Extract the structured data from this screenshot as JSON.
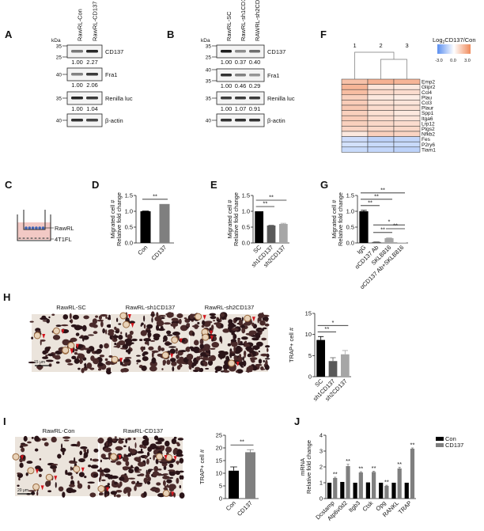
{
  "panels": {
    "A": "A",
    "B": "B",
    "C": "C",
    "D": "D",
    "E": "E",
    "F": "F",
    "G": "G",
    "H": "H",
    "I": "I",
    "J": "J"
  },
  "blot_A": {
    "kda": "kDa",
    "lanes": [
      "RawRL-Con",
      "RawRL-CD137"
    ],
    "rows": [
      {
        "label": "CD137",
        "markers": [
          "35",
          "25"
        ],
        "values": [
          "1.00",
          "2.27"
        ],
        "intensity": [
          0.55,
          0.95
        ]
      },
      {
        "label": "Fra1",
        "markers": [
          "40"
        ],
        "values": [
          "1.00",
          "2.06"
        ],
        "intensity": [
          0.5,
          0.85
        ]
      },
      {
        "label": "Renilla luc",
        "markers": [
          "35"
        ],
        "values": [
          "1.00",
          "1.04"
        ],
        "intensity": [
          0.95,
          0.85
        ]
      },
      {
        "label": "β-actin",
        "markers": [
          "40"
        ],
        "values": [],
        "intensity": [
          0.9,
          0.8
        ]
      }
    ]
  },
  "blot_B": {
    "kda": "kDa",
    "lanes": [
      "RawRL-SC",
      "RawRL-sh1CD137",
      "RAWRL-sh2CD137"
    ],
    "rows": [
      {
        "label": "CD137",
        "markers": [
          "35",
          "25"
        ],
        "values": [
          "1.00",
          "0.37",
          "0.40"
        ],
        "intensity": [
          1.0,
          0.45,
          0.6
        ]
      },
      {
        "label": "Fra1",
        "markers": [
          "40",
          "35"
        ],
        "values": [
          "1.00",
          "0.46",
          "0.29"
        ],
        "intensity": [
          0.9,
          0.5,
          0.4
        ]
      },
      {
        "label": "Renilla luc",
        "markers": [
          "35"
        ],
        "values": [
          "1.00",
          "1.07",
          "0.91"
        ],
        "intensity": [
          0.85,
          0.85,
          0.85
        ]
      },
      {
        "label": "β-actin",
        "markers": [
          "40"
        ],
        "values": [],
        "intensity": [
          0.9,
          0.9,
          0.9
        ]
      }
    ]
  },
  "heatmap": {
    "legend_title": "Log2CD137/Con",
    "legend_title_main": "Log",
    "legend_title_sub": "2",
    "legend_title_rest": "CD137/Con",
    "legend_ticks": [
      "-3.0",
      "0.0",
      "3.0"
    ],
    "range": [
      -3,
      3
    ],
    "colors": {
      "low": "#5b8ff0",
      "mid": "#ffffff",
      "high": "#f08a5b"
    },
    "columns": [
      "1",
      "2",
      "3"
    ],
    "genes": [
      "Emp2",
      "Glipr2",
      "Ccl4",
      "Plau",
      "Ccl3",
      "Plaur",
      "Spp1",
      "Itga6",
      "Lrp12",
      "Ptgs2",
      "Nfkb2",
      "Fes",
      "P2ry6",
      "Tiam1"
    ],
    "values": [
      [
        1.6,
        2.0,
        1.9
      ],
      [
        1.9,
        0.7,
        0.6
      ],
      [
        1.7,
        1.0,
        0.9
      ],
      [
        1.2,
        0.6,
        0.5
      ],
      [
        1.3,
        0.8,
        0.7
      ],
      [
        1.4,
        0.9,
        0.8
      ],
      [
        1.2,
        0.8,
        0.6
      ],
      [
        1.3,
        0.9,
        0.7
      ],
      [
        1.2,
        1.0,
        0.9
      ],
      [
        1.1,
        1.0,
        1.0
      ],
      [
        0.6,
        1.2,
        1.1
      ],
      [
        -0.9,
        -1.2,
        -1.1
      ],
      [
        -0.8,
        -1.0,
        -1.0
      ],
      [
        -1.0,
        -1.1,
        -1.2
      ]
    ]
  },
  "schematic": {
    "top_label": "RawRL",
    "bottom_label": "4T1FL"
  },
  "chart_data": [
    {
      "id": "D",
      "type": "bar",
      "ylabel_lines": [
        "Migrated cell #",
        "Relative fold change"
      ],
      "categories": [
        "Con",
        "CD137"
      ],
      "values": [
        1.0,
        1.23
      ],
      "errors": [
        0.01,
        0.0
      ],
      "colors": [
        "#000000",
        "#7f7f7f"
      ],
      "ylim": [
        0,
        1.5
      ],
      "yticks": [
        "0.0",
        "0.5",
        "1.0",
        "1.5"
      ],
      "significance": [
        {
          "pair": [
            0,
            1
          ],
          "label": "**"
        }
      ]
    },
    {
      "id": "E",
      "type": "bar",
      "ylabel_lines": [
        "Migrated cell #",
        "Relative fold change"
      ],
      "categories": [
        "SC",
        "sh1CD137",
        "sh2CD137"
      ],
      "values": [
        1.0,
        0.55,
        0.6
      ],
      "errors": [
        0.0,
        0.01,
        0.02
      ],
      "colors": [
        "#000000",
        "#595959",
        "#a6a6a6"
      ],
      "ylim": [
        0,
        1.5
      ],
      "yticks": [
        "0.0",
        "0.5",
        "1.0",
        "1.5"
      ],
      "significance": [
        {
          "pair": [
            0,
            1
          ],
          "label": "**"
        },
        {
          "pair": [
            0,
            2
          ],
          "label": "**"
        }
      ]
    },
    {
      "id": "G",
      "type": "bar",
      "ylabel_lines": [
        "Migrated cell #",
        "Relative fold change"
      ],
      "categories": [
        "IgG",
        "αCD137 Ab",
        "SKLB816",
        "αCD137 Ab+SKLB816"
      ],
      "values": [
        1.0,
        0.03,
        0.15,
        0.01
      ],
      "errors": [
        0.03,
        0.005,
        0.01,
        0.0
      ],
      "colors": [
        "#000000",
        "#595959",
        "#a6a6a6",
        "#d0d0d0"
      ],
      "ylim": [
        0,
        1.5
      ],
      "yticks": [
        "0.0",
        "0.5",
        "1.0",
        "1.5"
      ],
      "significance": [
        {
          "pair": [
            1,
            2
          ],
          "label": "**",
          "low": true
        },
        {
          "pair": [
            2,
            3
          ],
          "label": "**",
          "low": true
        },
        {
          "pair": [
            1,
            3
          ],
          "label": "*",
          "low": true
        },
        {
          "pair": [
            0,
            1
          ],
          "label": "**"
        },
        {
          "pair": [
            0,
            2
          ],
          "label": "**"
        },
        {
          "pair": [
            0,
            3
          ],
          "label": "**"
        }
      ]
    },
    {
      "id": "H",
      "type": "bar",
      "ylabel_lines": [
        "TRAP+ cell #"
      ],
      "categories": [
        "SC",
        "sh1CD137",
        "sh2CD137"
      ],
      "values": [
        8.7,
        3.7,
        5.3
      ],
      "errors": [
        0.8,
        0.8,
        0.9
      ],
      "colors": [
        "#000000",
        "#595959",
        "#a6a6a6"
      ],
      "ylim": [
        0,
        15
      ],
      "yticks": [
        "0",
        "5",
        "10",
        "15"
      ],
      "significance": [
        {
          "pair": [
            0,
            1
          ],
          "label": "**"
        },
        {
          "pair": [
            0,
            2
          ],
          "label": "*"
        }
      ]
    },
    {
      "id": "I",
      "type": "bar",
      "ylabel_lines": [
        "TRAP+ cell #"
      ],
      "categories": [
        "Con",
        "CD137"
      ],
      "values": [
        11.0,
        18.3
      ],
      "errors": [
        1.5,
        1.0
      ],
      "colors": [
        "#000000",
        "#7f7f7f"
      ],
      "ylim": [
        0,
        25
      ],
      "yticks": [
        "0",
        "5",
        "10",
        "15",
        "20",
        "25"
      ],
      "significance": [
        {
          "pair": [
            0,
            1
          ],
          "label": "**"
        }
      ]
    },
    {
      "id": "J",
      "type": "grouped-bar",
      "ylabel_lines": [
        "mRNA",
        "Relative fold change"
      ],
      "categories": [
        "Dcstamp",
        "Atp6v0d2",
        "Itgb3",
        "Ctsk",
        "Opg",
        "RANKL",
        "TRAP"
      ],
      "series": [
        {
          "name": "Con",
          "color": "#000000",
          "values": [
            1.0,
            1.05,
            1.0,
            1.02,
            1.0,
            1.0,
            1.0
          ]
        },
        {
          "name": "CD137",
          "color": "#7f7f7f",
          "values": [
            1.3,
            2.05,
            1.65,
            1.68,
            0.8,
            1.9,
            3.15
          ]
        }
      ],
      "errors": [
        0.05,
        0.12,
        0.05,
        0.05,
        0.04,
        0.08,
        0.05
      ],
      "significance_labels": [
        "**",
        "**",
        "**",
        "**",
        "**",
        "**",
        "**"
      ],
      "ylim": [
        0,
        4
      ],
      "yticks": [
        "0",
        "1",
        "2",
        "3",
        "4"
      ],
      "legend": "top-right"
    }
  ],
  "micrographs_H": {
    "titles": [
      "RawRL-SC",
      "RawRL-sh1CD137",
      "RawRL-sh2CD137"
    ],
    "scale": "15 μm"
  },
  "micrographs_I": {
    "titles": [
      "RawRL-Con",
      "RawRL-CD137"
    ],
    "scale": "20 μm"
  }
}
